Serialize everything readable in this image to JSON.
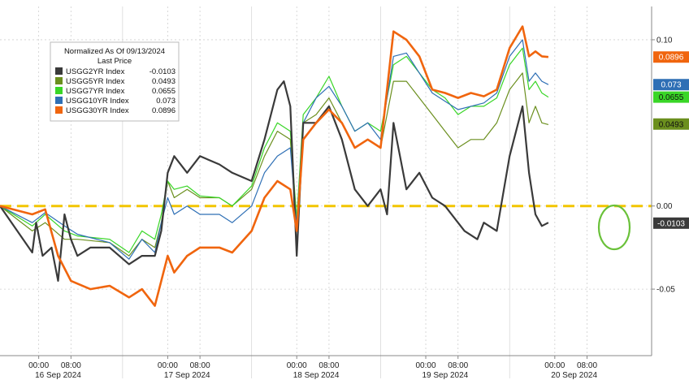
{
  "chart_data": {
    "type": "line",
    "legend": {
      "title": "Normalized As Of 09/13/2024",
      "subtitle": "Last Price",
      "placement": "top-left"
    },
    "y_ticks": [
      {
        "value": 0.1,
        "label": "0.10"
      },
      {
        "value": 0.0,
        "label": "0.00"
      },
      {
        "value": -0.05,
        "label": "-0.05"
      }
    ],
    "ylim": [
      -0.09,
      0.12
    ],
    "xlim": [
      0,
      5
    ],
    "x_time_ticks": [
      {
        "x": 0.3,
        "label": "00:00"
      },
      {
        "x": 0.55,
        "label": "08:00"
      },
      {
        "x": 1.3,
        "label": "00:00"
      },
      {
        "x": 1.55,
        "label": "08:00"
      },
      {
        "x": 2.3,
        "label": "00:00"
      },
      {
        "x": 2.55,
        "label": "08:00"
      },
      {
        "x": 3.3,
        "label": "00:00"
      },
      {
        "x": 3.55,
        "label": "08:00"
      },
      {
        "x": 4.3,
        "label": "00:00"
      },
      {
        "x": 4.55,
        "label": "08:00"
      }
    ],
    "x_date_labels": [
      {
        "x": 0.45,
        "label": "16 Sep 2024"
      },
      {
        "x": 1.45,
        "label": "17 Sep 2024"
      },
      {
        "x": 2.45,
        "label": "18 Sep 2024"
      },
      {
        "x": 3.45,
        "label": "19 Sep 2024"
      },
      {
        "x": 4.45,
        "label": "20 Sep 2024"
      }
    ],
    "reference_line": {
      "value": 0.0,
      "color": "#f2c500"
    },
    "series": [
      {
        "name": "USGG2YR Index",
        "last": "-0.0103",
        "color": "#3a3a3a",
        "tag_text": "#ffffff",
        "points": [
          [
            0,
            0
          ],
          [
            0.25,
            -0.028
          ],
          [
            0.28,
            -0.01
          ],
          [
            0.33,
            -0.03
          ],
          [
            0.4,
            -0.025
          ],
          [
            0.45,
            -0.045
          ],
          [
            0.5,
            -0.005
          ],
          [
            0.55,
            -0.02
          ],
          [
            0.6,
            -0.03
          ],
          [
            0.7,
            -0.025
          ],
          [
            0.85,
            -0.025
          ],
          [
            1.0,
            -0.035
          ],
          [
            1.1,
            -0.03
          ],
          [
            1.2,
            -0.03
          ],
          [
            1.25,
            -0.015
          ],
          [
            1.3,
            0.02
          ],
          [
            1.35,
            0.03
          ],
          [
            1.45,
            0.02
          ],
          [
            1.55,
            0.03
          ],
          [
            1.7,
            0.025
          ],
          [
            1.8,
            0.02
          ],
          [
            1.95,
            0.015
          ],
          [
            2.05,
            0.04
          ],
          [
            2.15,
            0.07
          ],
          [
            2.2,
            0.075
          ],
          [
            2.25,
            0.06
          ],
          [
            2.3,
            -0.03
          ],
          [
            2.35,
            0.05
          ],
          [
            2.45,
            0.05
          ],
          [
            2.55,
            0.06
          ],
          [
            2.65,
            0.04
          ],
          [
            2.75,
            0.01
          ],
          [
            2.85,
            0.0
          ],
          [
            2.95,
            0.01
          ],
          [
            3.0,
            -0.005
          ],
          [
            3.05,
            0.05
          ],
          [
            3.1,
            0.03
          ],
          [
            3.15,
            0.01
          ],
          [
            3.25,
            0.02
          ],
          [
            3.35,
            0.005
          ],
          [
            3.45,
            0.0
          ],
          [
            3.55,
            -0.01
          ],
          [
            3.6,
            -0.015
          ],
          [
            3.7,
            -0.02
          ],
          [
            3.75,
            -0.01
          ],
          [
            3.85,
            -0.015
          ],
          [
            3.95,
            0.03
          ],
          [
            4.05,
            0.06
          ],
          [
            4.1,
            0.02
          ],
          [
            4.15,
            -0.005
          ],
          [
            4.2,
            -0.012
          ],
          [
            4.25,
            -0.01
          ]
        ]
      },
      {
        "name": "USGG5YR Index",
        "last": "0.0493",
        "color": "#6b8f1e",
        "tag_text": "#ffffff",
        "points": [
          [
            0,
            0
          ],
          [
            0.25,
            -0.015
          ],
          [
            0.35,
            -0.01
          ],
          [
            0.5,
            -0.02
          ],
          [
            0.6,
            -0.02
          ],
          [
            0.85,
            -0.022
          ],
          [
            1.0,
            -0.03
          ],
          [
            1.1,
            -0.02
          ],
          [
            1.2,
            -0.025
          ],
          [
            1.25,
            -0.01
          ],
          [
            1.3,
            0.015
          ],
          [
            1.35,
            0.005
          ],
          [
            1.45,
            0.01
          ],
          [
            1.55,
            0.005
          ],
          [
            1.7,
            0.005
          ],
          [
            1.8,
            0.0
          ],
          [
            1.95,
            0.01
          ],
          [
            2.05,
            0.03
          ],
          [
            2.15,
            0.045
          ],
          [
            2.25,
            0.04
          ],
          [
            2.3,
            -0.01
          ],
          [
            2.35,
            0.05
          ],
          [
            2.45,
            0.055
          ],
          [
            2.55,
            0.065
          ],
          [
            2.65,
            0.05
          ],
          [
            2.75,
            0.035
          ],
          [
            2.85,
            0.04
          ],
          [
            2.95,
            0.035
          ],
          [
            3.05,
            0.075
          ],
          [
            3.15,
            0.075
          ],
          [
            3.25,
            0.065
          ],
          [
            3.35,
            0.055
          ],
          [
            3.45,
            0.045
          ],
          [
            3.55,
            0.035
          ],
          [
            3.65,
            0.04
          ],
          [
            3.75,
            0.04
          ],
          [
            3.85,
            0.05
          ],
          [
            3.95,
            0.07
          ],
          [
            4.05,
            0.08
          ],
          [
            4.1,
            0.05
          ],
          [
            4.15,
            0.06
          ],
          [
            4.2,
            0.05
          ],
          [
            4.25,
            0.049
          ]
        ]
      },
      {
        "name": "USGG7YR Index",
        "last": "0.0655",
        "color": "#39d627",
        "tag_text": "#ffffff",
        "points": [
          [
            0,
            0
          ],
          [
            0.25,
            -0.012
          ],
          [
            0.35,
            -0.005
          ],
          [
            0.5,
            -0.015
          ],
          [
            0.6,
            -0.018
          ],
          [
            0.85,
            -0.02
          ],
          [
            1.0,
            -0.028
          ],
          [
            1.1,
            -0.015
          ],
          [
            1.2,
            -0.02
          ],
          [
            1.25,
            -0.005
          ],
          [
            1.3,
            0.015
          ],
          [
            1.35,
            0.01
          ],
          [
            1.45,
            0.012
          ],
          [
            1.55,
            0.006
          ],
          [
            1.7,
            0.005
          ],
          [
            1.8,
            0.0
          ],
          [
            1.95,
            0.012
          ],
          [
            2.05,
            0.035
          ],
          [
            2.15,
            0.05
          ],
          [
            2.25,
            0.045
          ],
          [
            2.3,
            -0.008
          ],
          [
            2.35,
            0.055
          ],
          [
            2.45,
            0.065
          ],
          [
            2.55,
            0.078
          ],
          [
            2.65,
            0.06
          ],
          [
            2.75,
            0.045
          ],
          [
            2.85,
            0.05
          ],
          [
            2.95,
            0.045
          ],
          [
            3.05,
            0.085
          ],
          [
            3.15,
            0.09
          ],
          [
            3.25,
            0.08
          ],
          [
            3.35,
            0.07
          ],
          [
            3.45,
            0.065
          ],
          [
            3.55,
            0.055
          ],
          [
            3.65,
            0.06
          ],
          [
            3.75,
            0.06
          ],
          [
            3.85,
            0.065
          ],
          [
            3.95,
            0.085
          ],
          [
            4.05,
            0.095
          ],
          [
            4.1,
            0.07
          ],
          [
            4.15,
            0.075
          ],
          [
            4.2,
            0.068
          ],
          [
            4.25,
            0.0655
          ]
        ]
      },
      {
        "name": "USGG10YR Index",
        "last": "0.073",
        "color": "#2e6fb5",
        "tag_text": "#ffffff",
        "points": [
          [
            0,
            0
          ],
          [
            0.25,
            -0.01
          ],
          [
            0.35,
            -0.004
          ],
          [
            0.5,
            -0.012
          ],
          [
            0.6,
            -0.017
          ],
          [
            0.85,
            -0.022
          ],
          [
            1.0,
            -0.032
          ],
          [
            1.1,
            -0.02
          ],
          [
            1.2,
            -0.028
          ],
          [
            1.25,
            -0.01
          ],
          [
            1.3,
            0.005
          ],
          [
            1.35,
            -0.005
          ],
          [
            1.45,
            0.0
          ],
          [
            1.55,
            -0.005
          ],
          [
            1.7,
            -0.005
          ],
          [
            1.8,
            -0.01
          ],
          [
            1.95,
            0.0
          ],
          [
            2.05,
            0.02
          ],
          [
            2.15,
            0.03
          ],
          [
            2.25,
            0.035
          ],
          [
            2.3,
            -0.012
          ],
          [
            2.35,
            0.05
          ],
          [
            2.45,
            0.065
          ],
          [
            2.55,
            0.072
          ],
          [
            2.65,
            0.06
          ],
          [
            2.75,
            0.045
          ],
          [
            2.85,
            0.05
          ],
          [
            2.95,
            0.04
          ],
          [
            3.05,
            0.09
          ],
          [
            3.15,
            0.092
          ],
          [
            3.25,
            0.08
          ],
          [
            3.35,
            0.068
          ],
          [
            3.45,
            0.063
          ],
          [
            3.55,
            0.058
          ],
          [
            3.65,
            0.06
          ],
          [
            3.75,
            0.062
          ],
          [
            3.85,
            0.068
          ],
          [
            3.95,
            0.09
          ],
          [
            4.05,
            0.1
          ],
          [
            4.1,
            0.075
          ],
          [
            4.15,
            0.08
          ],
          [
            4.2,
            0.075
          ],
          [
            4.25,
            0.073
          ]
        ]
      },
      {
        "name": "USGG30YR Index",
        "last": "0.0896",
        "color": "#f0650e",
        "tag_text": "#ffffff",
        "points": [
          [
            0,
            0
          ],
          [
            0.25,
            -0.005
          ],
          [
            0.35,
            -0.002
          ],
          [
            0.45,
            -0.03
          ],
          [
            0.55,
            -0.045
          ],
          [
            0.7,
            -0.05
          ],
          [
            0.85,
            -0.048
          ],
          [
            1.0,
            -0.055
          ],
          [
            1.1,
            -0.05
          ],
          [
            1.2,
            -0.06
          ],
          [
            1.25,
            -0.045
          ],
          [
            1.3,
            -0.03
          ],
          [
            1.35,
            -0.04
          ],
          [
            1.45,
            -0.03
          ],
          [
            1.55,
            -0.025
          ],
          [
            1.7,
            -0.025
          ],
          [
            1.8,
            -0.028
          ],
          [
            1.95,
            -0.015
          ],
          [
            2.05,
            0.005
          ],
          [
            2.15,
            0.015
          ],
          [
            2.25,
            0.01
          ],
          [
            2.3,
            -0.015
          ],
          [
            2.35,
            0.04
          ],
          [
            2.45,
            0.05
          ],
          [
            2.55,
            0.058
          ],
          [
            2.65,
            0.05
          ],
          [
            2.75,
            0.035
          ],
          [
            2.85,
            0.04
          ],
          [
            2.95,
            0.035
          ],
          [
            3.05,
            0.105
          ],
          [
            3.15,
            0.1
          ],
          [
            3.25,
            0.09
          ],
          [
            3.35,
            0.07
          ],
          [
            3.45,
            0.068
          ],
          [
            3.55,
            0.065
          ],
          [
            3.65,
            0.068
          ],
          [
            3.75,
            0.066
          ],
          [
            3.85,
            0.07
          ],
          [
            3.95,
            0.095
          ],
          [
            4.05,
            0.108
          ],
          [
            4.1,
            0.09
          ],
          [
            4.15,
            0.093
          ],
          [
            4.2,
            0.09
          ],
          [
            4.25,
            0.0896
          ]
        ]
      }
    ]
  }
}
